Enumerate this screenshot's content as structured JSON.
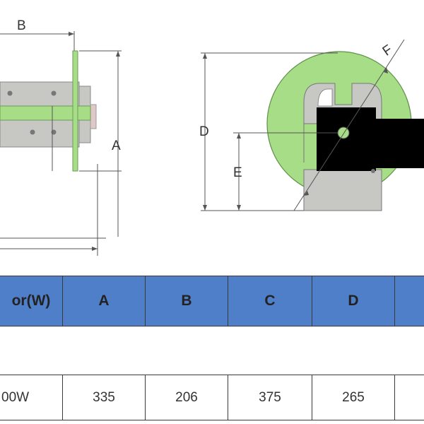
{
  "drawing": {
    "labels": {
      "b": "B",
      "a": "A",
      "d": "D",
      "e": "E",
      "f": "F"
    },
    "colors": {
      "green": "#a6dd86",
      "grey": "#c7c7c4",
      "black": "#000000",
      "dim_line": "#555555"
    }
  },
  "table": {
    "headers": [
      "or(W)",
      "A",
      "B",
      "C",
      "D",
      ""
    ],
    "rows": [
      [
        "00W",
        "335",
        "206",
        "375",
        "265",
        ""
      ]
    ],
    "colors": {
      "header_bg": "#4f7fc9",
      "border": "#3a3a3a"
    }
  }
}
